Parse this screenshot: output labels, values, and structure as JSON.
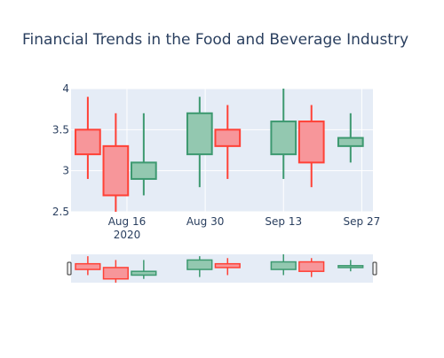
{
  "chart_data": {
    "type": "candlestick",
    "title": "Financial Trends in the Food and Beverage Industry",
    "x_ticks": [
      {
        "date": "2020-08-16",
        "label": "Aug 16",
        "sublabel": "2020"
      },
      {
        "date": "2020-08-30",
        "label": "Aug 30",
        "sublabel": ""
      },
      {
        "date": "2020-09-13",
        "label": "Sep 13",
        "sublabel": ""
      },
      {
        "date": "2020-09-27",
        "label": "Sep 27",
        "sublabel": ""
      }
    ],
    "y_ticks": [
      "2.5",
      "3",
      "3.5",
      "4"
    ],
    "ylim": [
      2.5,
      4
    ],
    "xlim": [
      "2020-08-06",
      "2020-09-29"
    ],
    "grid": true,
    "rangeslider": true,
    "colors": {
      "increasing_line": "#3d9970",
      "increasing_fill": "#93c8b0",
      "decreasing_line": "#ff4136",
      "decreasing_fill": "#f7969a",
      "plot_bg": "#e5ecf6",
      "text": "#2a3f5f"
    },
    "candles": [
      {
        "date": "2020-08-09",
        "open": 3.5,
        "high": 3.9,
        "low": 2.9,
        "close": 3.2
      },
      {
        "date": "2020-08-14",
        "open": 3.3,
        "high": 3.7,
        "low": 2.5,
        "close": 2.7
      },
      {
        "date": "2020-08-19",
        "open": 2.9,
        "high": 3.7,
        "low": 2.7,
        "close": 3.1
      },
      {
        "date": "2020-08-29",
        "open": 3.2,
        "high": 3.9,
        "low": 2.8,
        "close": 3.7
      },
      {
        "date": "2020-09-03",
        "open": 3.5,
        "high": 3.8,
        "low": 2.9,
        "close": 3.3
      },
      {
        "date": "2020-09-13",
        "open": 3.2,
        "high": 4.0,
        "low": 2.9,
        "close": 3.6
      },
      {
        "date": "2020-09-18",
        "open": 3.6,
        "high": 3.8,
        "low": 2.8,
        "close": 3.1
      },
      {
        "date": "2020-09-25",
        "open": 3.3,
        "high": 3.7,
        "low": 3.1,
        "close": 3.4
      }
    ]
  }
}
